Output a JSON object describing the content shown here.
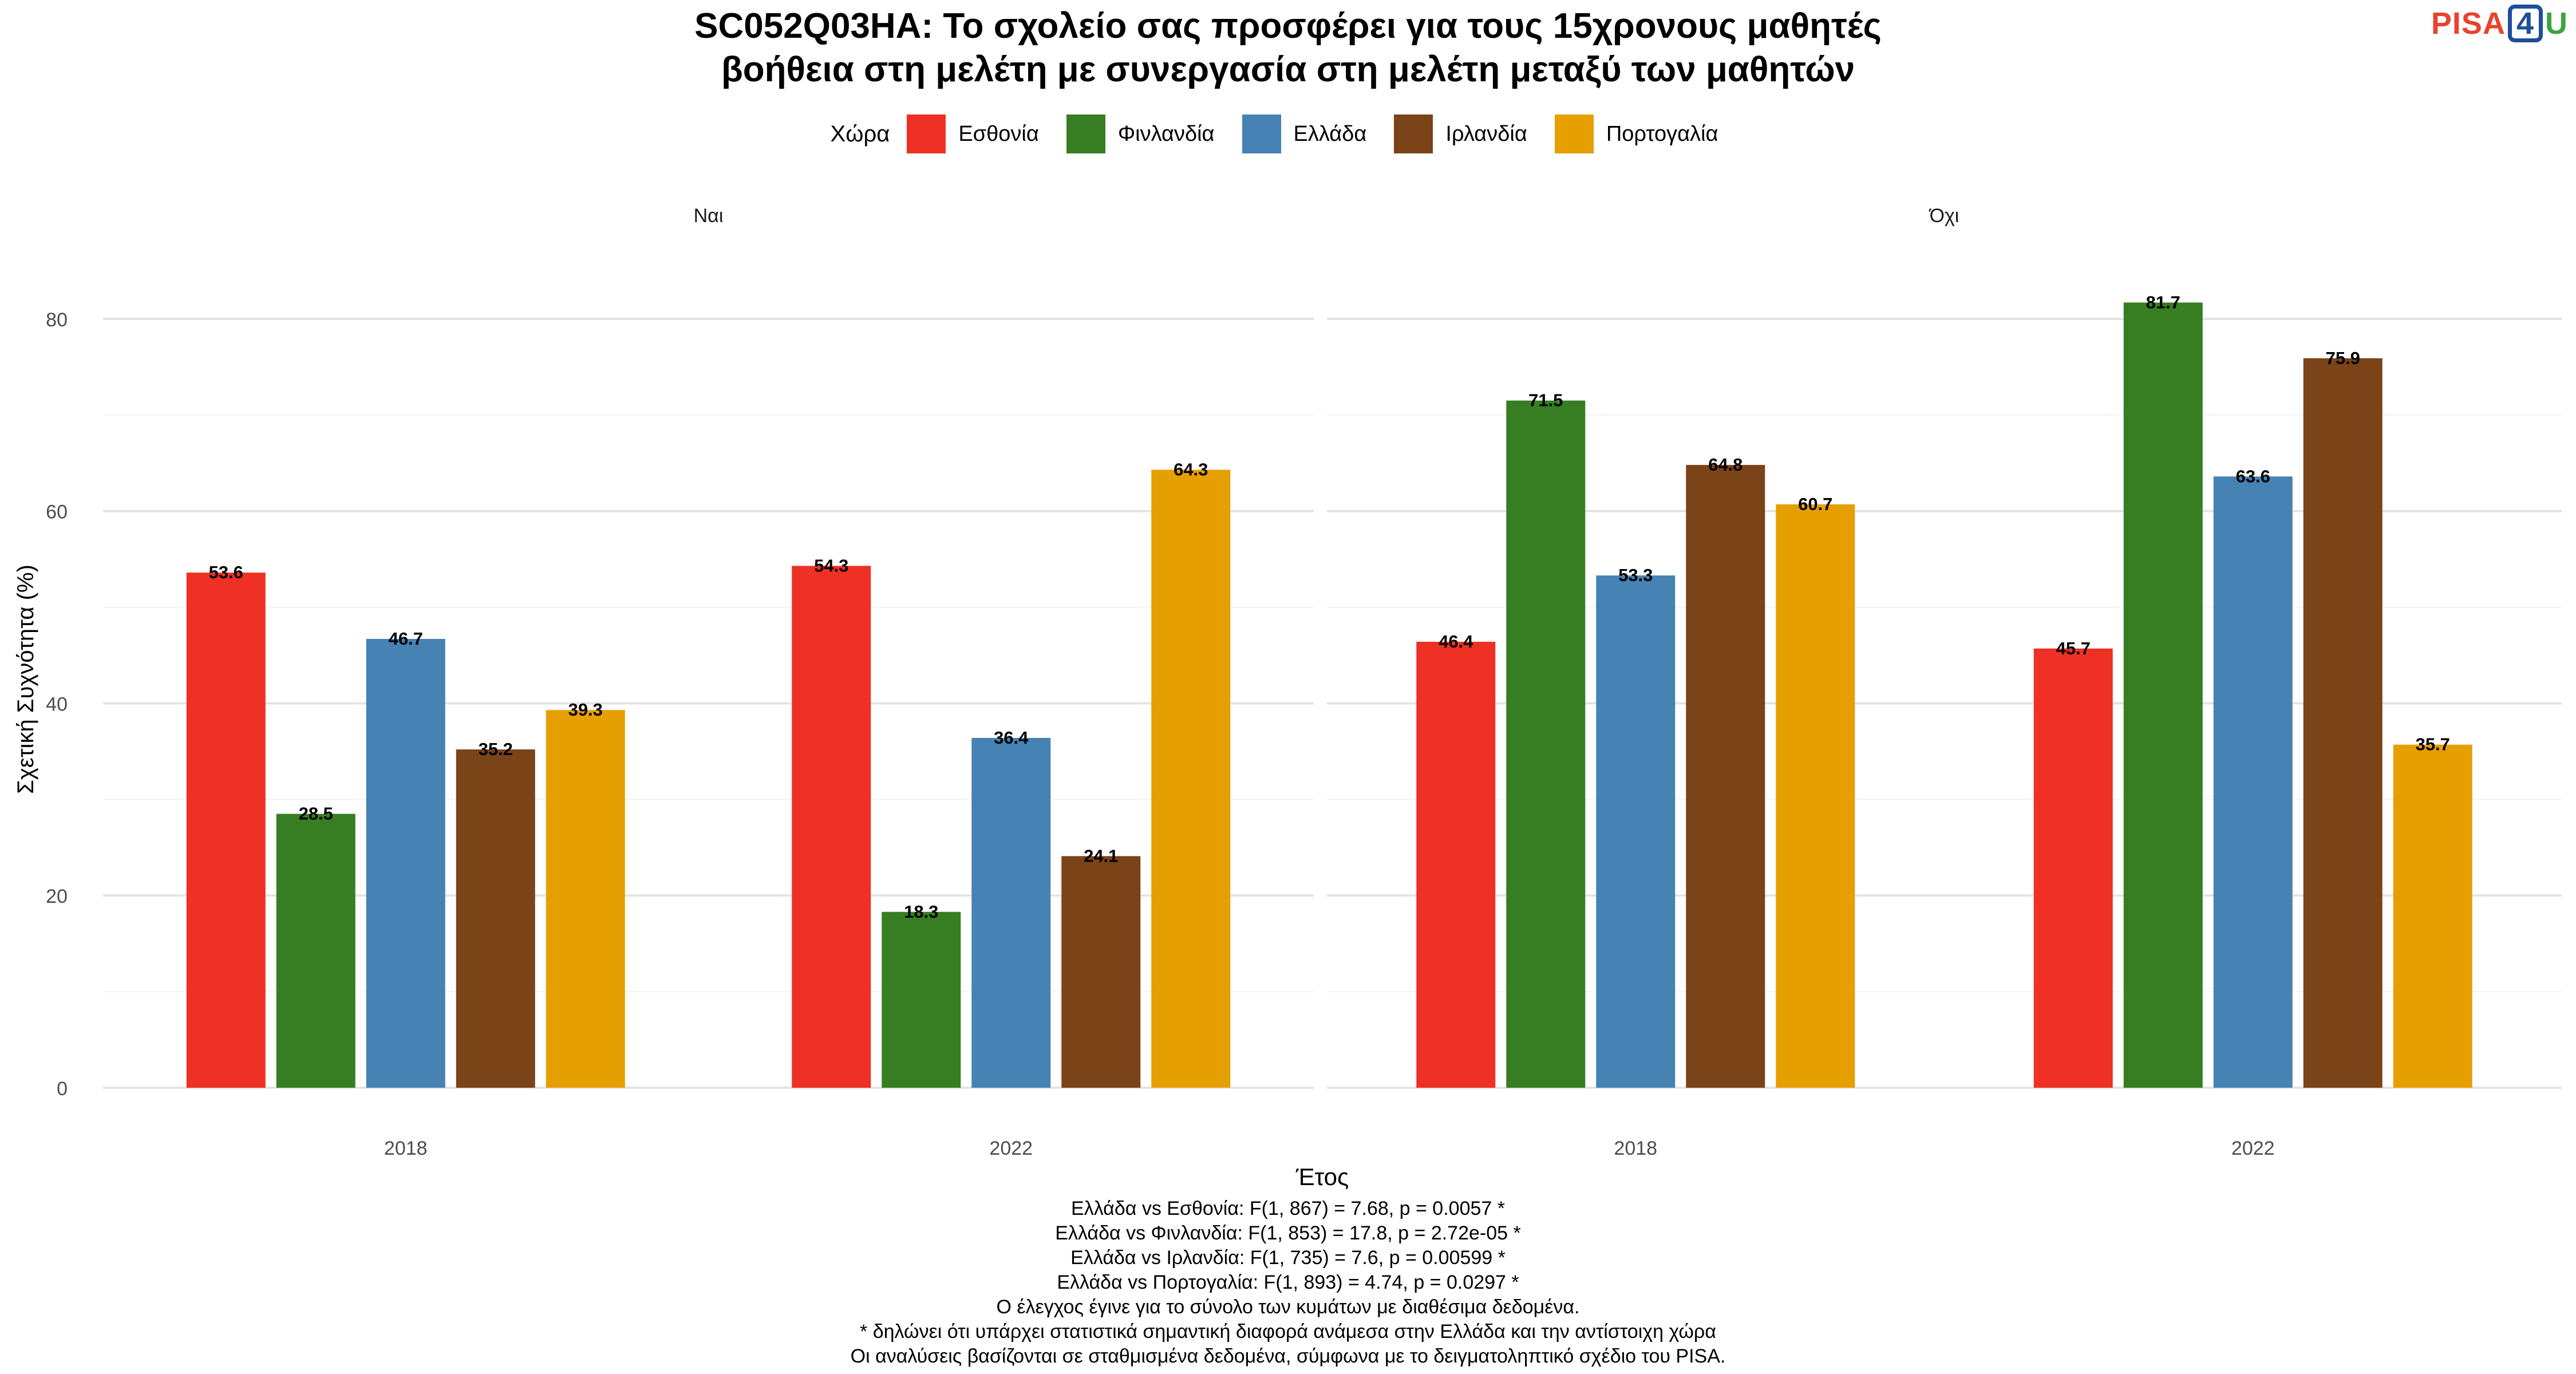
{
  "title_line1": "SC052Q03HA: Το σχολείο σας προσφέρει για τους 15χρονους μαθητές",
  "title_line2": "βοήθεια στη μελέτη με συνεργασία στη μελέτη μεταξύ των μαθητών",
  "logo": {
    "text1": "PISA",
    "text2": "4",
    "text3": "U"
  },
  "legend": {
    "title": "Χώρα",
    "items": [
      {
        "label": "Εσθονία",
        "color": "#ee3124"
      },
      {
        "label": "Φινλανδία",
        "color": "#377e22"
      },
      {
        "label": "Ελλάδα",
        "color": "#4682b4"
      },
      {
        "label": "Ιρλανδία",
        "color": "#7b4318"
      },
      {
        "label": "Πορτογαλία",
        "color": "#e69f00"
      }
    ]
  },
  "chart_data": {
    "type": "bar",
    "xlabel": "Έτος",
    "ylabel": "Σχετική Συχνότητα (%)",
    "ylim": [
      0,
      85
    ],
    "yticks": [
      0,
      20,
      40,
      60,
      80
    ],
    "categories": [
      "2018",
      "2022"
    ],
    "grid": true,
    "legend_position": "top",
    "panels": [
      {
        "name": "Ναι",
        "series": [
          {
            "name": "Εσθονία",
            "values": [
              53.6,
              54.3
            ]
          },
          {
            "name": "Φινλανδία",
            "values": [
              28.5,
              18.3
            ]
          },
          {
            "name": "Ελλάδα",
            "values": [
              46.7,
              36.4
            ]
          },
          {
            "name": "Ιρλανδία",
            "values": [
              35.2,
              24.1
            ]
          },
          {
            "name": "Πορτογαλία",
            "values": [
              39.3,
              64.3
            ]
          }
        ]
      },
      {
        "name": "Όχι",
        "series": [
          {
            "name": "Εσθονία",
            "values": [
              46.4,
              45.7
            ]
          },
          {
            "name": "Φινλανδία",
            "values": [
              71.5,
              81.7
            ]
          },
          {
            "name": "Ελλάδα",
            "values": [
              53.3,
              63.6
            ]
          },
          {
            "name": "Ιρλανδία",
            "values": [
              64.8,
              75.9
            ]
          },
          {
            "name": "Πορτογαλία",
            "values": [
              60.7,
              35.7
            ]
          }
        ]
      }
    ]
  },
  "notes": [
    "Ελλάδα vs Εσθονία: F(1, 867) = 7.68, p = 0.0057 *",
    "Ελλάδα vs Φινλανδία: F(1, 853) = 17.8, p = 2.72e-05 *",
    "Ελλάδα vs Ιρλανδία: F(1, 735) = 7.6, p = 0.00599 *",
    "Ελλάδα vs Πορτογαλία: F(1, 893) = 4.74, p = 0.0297 *",
    "Ο έλεγχος έγινε για το σύνολο των κυμάτων με διαθέσιμα δεδομένα.",
    "* δηλώνει ότι υπάρχει στατιστικά σημαντική διαφορά ανάμεσα στην Ελλάδα και την αντίστοιχη χώρα",
    "Οι αναλύσεις βασίζονται σε σταθμισμένα δεδομένα, σύμφωνα με το δειγματοληπτικό σχέδιο του PISA."
  ]
}
